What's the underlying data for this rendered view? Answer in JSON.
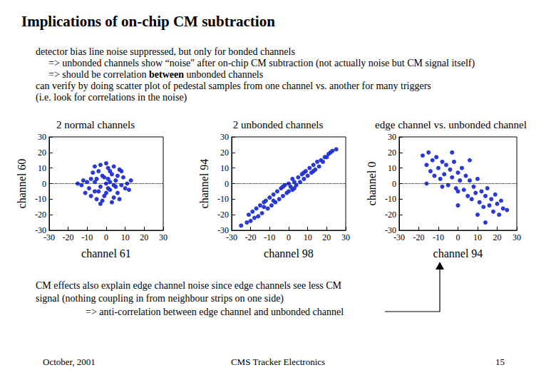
{
  "title": "Implications of on-chip CM subtraction",
  "intro_lines": [
    [
      {
        "text": "detector bias line noise suppressed, but only for bonded channels"
      }
    ],
    [
      {
        "text": "=> unbonded channels show “noise\" after on-chip CM subtraction (not actually noise but CM signal itself)"
      }
    ],
    [
      {
        "text": "=> should be correlation "
      },
      {
        "text": "between",
        "bold": true
      },
      {
        "text": " unbonded channels"
      }
    ],
    [
      {
        "text": "can verify by doing scatter plot of pedestal samples from one channel vs. another for many triggers"
      }
    ],
    [
      {
        "text": "(i.e. look for correlations in the noise)"
      }
    ]
  ],
  "chart_data": [
    {
      "type": "scatter",
      "title": "2 normal channels",
      "x_label": "channel 61",
      "y_label": "channel 60",
      "x": [
        -8,
        -6,
        -4,
        -3,
        -2,
        -1,
        0,
        1,
        2,
        3,
        4,
        5,
        6,
        7,
        8,
        -9,
        -7,
        -5,
        -10,
        9,
        10,
        -11,
        -12,
        -13,
        11,
        12,
        0,
        -3,
        3,
        -2,
        4,
        6,
        -6,
        1,
        -1,
        2,
        -4,
        5,
        0,
        -8,
        8,
        -15,
        13,
        7,
        -6,
        2,
        -3,
        1,
        -5,
        4
      ],
      "values": [
        3,
        -5,
        8,
        -2,
        5,
        -8,
        0,
        10,
        -4,
        6,
        -9,
        2,
        -6,
        9,
        -1,
        -3,
        7,
        -10,
        1,
        4,
        -3,
        -6,
        2,
        -1,
        0,
        -4,
        13,
        12,
        -12,
        -11,
        11,
        5,
        1,
        3,
        4,
        1,
        -5,
        -2,
        -6,
        -8,
        8,
        0,
        2,
        -10,
        11,
        8,
        -13,
        -3,
        3,
        -1
      ],
      "xlim": [
        -30,
        30
      ],
      "ylim": [
        -30,
        30
      ],
      "xticks": [
        -30,
        -20,
        -10,
        0,
        10,
        20,
        30
      ],
      "yticks": [
        -30,
        -20,
        -10,
        0,
        10,
        20,
        30
      ],
      "color": "#1f2fd0",
      "marker": "circle",
      "hline": 0
    },
    {
      "type": "scatter",
      "title": "2 unbonded channels",
      "x_label": "channel 98",
      "y_label": "channel 94",
      "x": [
        -25,
        -22,
        -21,
        -20,
        -19,
        -18,
        -17,
        -16,
        -15,
        -14,
        -13,
        -12,
        -11,
        -10,
        -9,
        -8,
        -7,
        -6,
        -5,
        -4,
        -3,
        -2,
        -1,
        0,
        0,
        1,
        2,
        2,
        3,
        4,
        5,
        6,
        7,
        8,
        9,
        10,
        11,
        12,
        13,
        14,
        15,
        16,
        17,
        18,
        19,
        20,
        21,
        22,
        23,
        25,
        -3,
        3,
        -8,
        8,
        -13,
        13
      ],
      "values": [
        -27,
        -25,
        -20,
        -24,
        -18,
        -22,
        -16,
        -21,
        -14,
        -19,
        -15,
        -11,
        -16,
        -9,
        -14,
        -7,
        -12,
        -5,
        -10,
        -3,
        -8,
        -1,
        -6,
        0,
        -5,
        -2,
        3,
        -4,
        1,
        -1,
        4,
        1,
        6,
        3,
        8,
        5,
        10,
        7,
        12,
        9,
        14,
        11,
        15,
        14,
        17,
        17,
        19,
        20,
        21,
        22,
        -2,
        -3,
        -11,
        7,
        -12,
        8
      ],
      "xlim": [
        -30,
        30
      ],
      "ylim": [
        -30,
        30
      ],
      "xticks": [
        -30,
        -20,
        -10,
        0,
        10,
        20,
        30
      ],
      "yticks": [
        -30,
        -20,
        -10,
        0,
        10,
        20,
        30
      ],
      "color": "#1f2fd0",
      "marker": "circle",
      "hline": 0
    },
    {
      "type": "scatter",
      "title": "edge channel vs. unbonded channel",
      "x_label": "channel 94",
      "y_label": "channel 0",
      "x": [
        -18,
        -16,
        -15,
        -14,
        -13,
        -12,
        -11,
        -10,
        -9,
        -8,
        -7,
        -6,
        -5,
        -4,
        -3,
        -2,
        -1,
        0,
        0,
        1,
        2,
        3,
        4,
        5,
        6,
        7,
        8,
        9,
        10,
        11,
        12,
        13,
        14,
        15,
        16,
        17,
        18,
        19,
        20,
        21,
        22,
        23,
        25,
        -3,
        6,
        0,
        10,
        -8,
        14,
        -16
      ],
      "values": [
        18,
        12,
        20,
        8,
        15,
        5,
        17,
        10,
        3,
        14,
        6,
        12,
        -1,
        9,
        4,
        14,
        -3,
        7,
        -5,
        2,
        10,
        -4,
        5,
        -8,
        2,
        -10,
        -2,
        -6,
        3,
        -12,
        -5,
        -15,
        -8,
        -3,
        -14,
        -10,
        -18,
        -7,
        -13,
        -20,
        -11,
        -16,
        -17,
        20,
        15,
        -14,
        -20,
        -2,
        -25,
        0
      ],
      "xlim": [
        -30,
        30
      ],
      "ylim": [
        -30,
        30
      ],
      "xticks": [
        -30,
        -20,
        -10,
        0,
        10,
        20,
        30
      ],
      "yticks": [
        -30,
        -20,
        -10,
        0,
        10,
        20,
        30
      ],
      "color": "#1f2fd0",
      "marker": "circle",
      "hline": 0
    }
  ],
  "notes": [
    "CM effects also explain edge channel noise since edge channels see less CM",
    "signal (nothing coupling in from neighbour strips on one side)",
    "=> anti-correlation between edge channel and unbonded channel"
  ],
  "footer": {
    "left": "October, 2001",
    "center": "CMS Tracker Electronics",
    "right": "15"
  }
}
